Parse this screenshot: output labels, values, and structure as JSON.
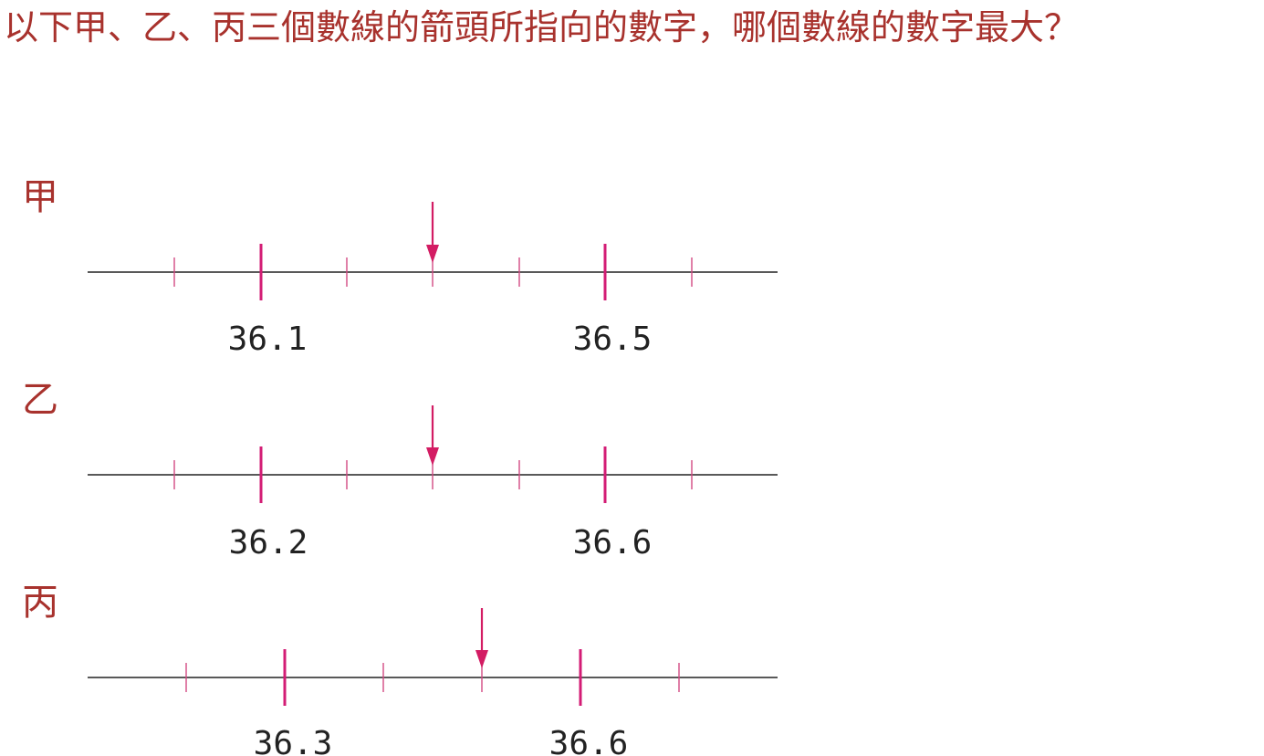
{
  "question": "以下甲、乙、丙三個數線的箭頭所指向的數字，哪個數線的數字最大？",
  "colors": {
    "text": "#a8322d",
    "tick": "#d31c75",
    "arrow": "#d31c63",
    "line": "#222222"
  },
  "number_lines": [
    {
      "label": "甲",
      "major_labels": [
        "36.1",
        "36.5"
      ],
      "major_values": [
        36.1,
        36.5
      ],
      "minor_step": 0.2,
      "arrow_value": 36.3
    },
    {
      "label": "乙",
      "major_labels": [
        "36.2",
        "36.6"
      ],
      "major_values": [
        36.2,
        36.6
      ],
      "minor_step": 0.2,
      "arrow_value": 36.4
    },
    {
      "label": "丙",
      "major_labels": [
        "36.3",
        "36.6"
      ],
      "major_values": [
        36.3,
        36.6
      ],
      "minor_step": 0.1,
      "arrow_value": 36.5
    }
  ]
}
